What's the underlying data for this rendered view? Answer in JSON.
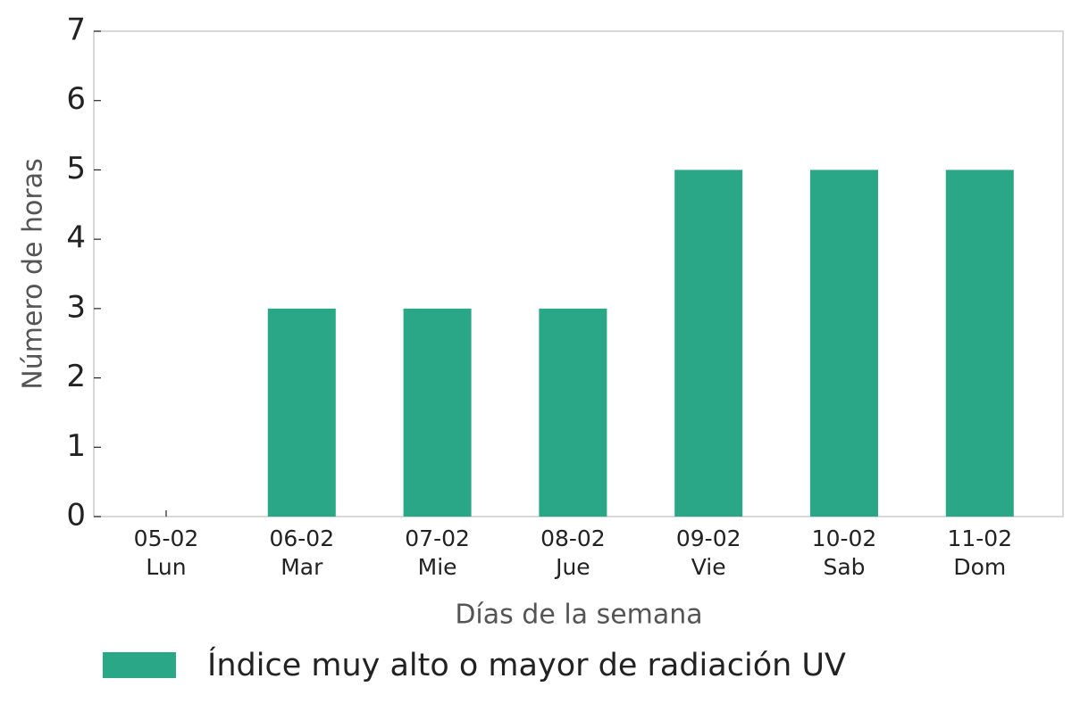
{
  "chart_data": {
    "type": "bar",
    "x_label": "Días de la semana",
    "y_label": "Número de horas",
    "categories": [
      "05-02\nLun",
      "06-02\nMar",
      "07-02\nMie",
      "08-02\nJue",
      "09-02\nVie",
      "10-02\nSab",
      "11-02\nDom"
    ],
    "series": [
      {
        "name": "Índice muy alto o mayor de radiación UV",
        "color": "#29a786",
        "values": [
          0,
          3,
          3,
          3,
          5,
          5,
          5
        ]
      }
    ],
    "ylim": [
      0,
      7
    ],
    "yticks": [
      0,
      1,
      2,
      3,
      4,
      5,
      6,
      7
    ],
    "grid": false,
    "legend": "bottom"
  }
}
